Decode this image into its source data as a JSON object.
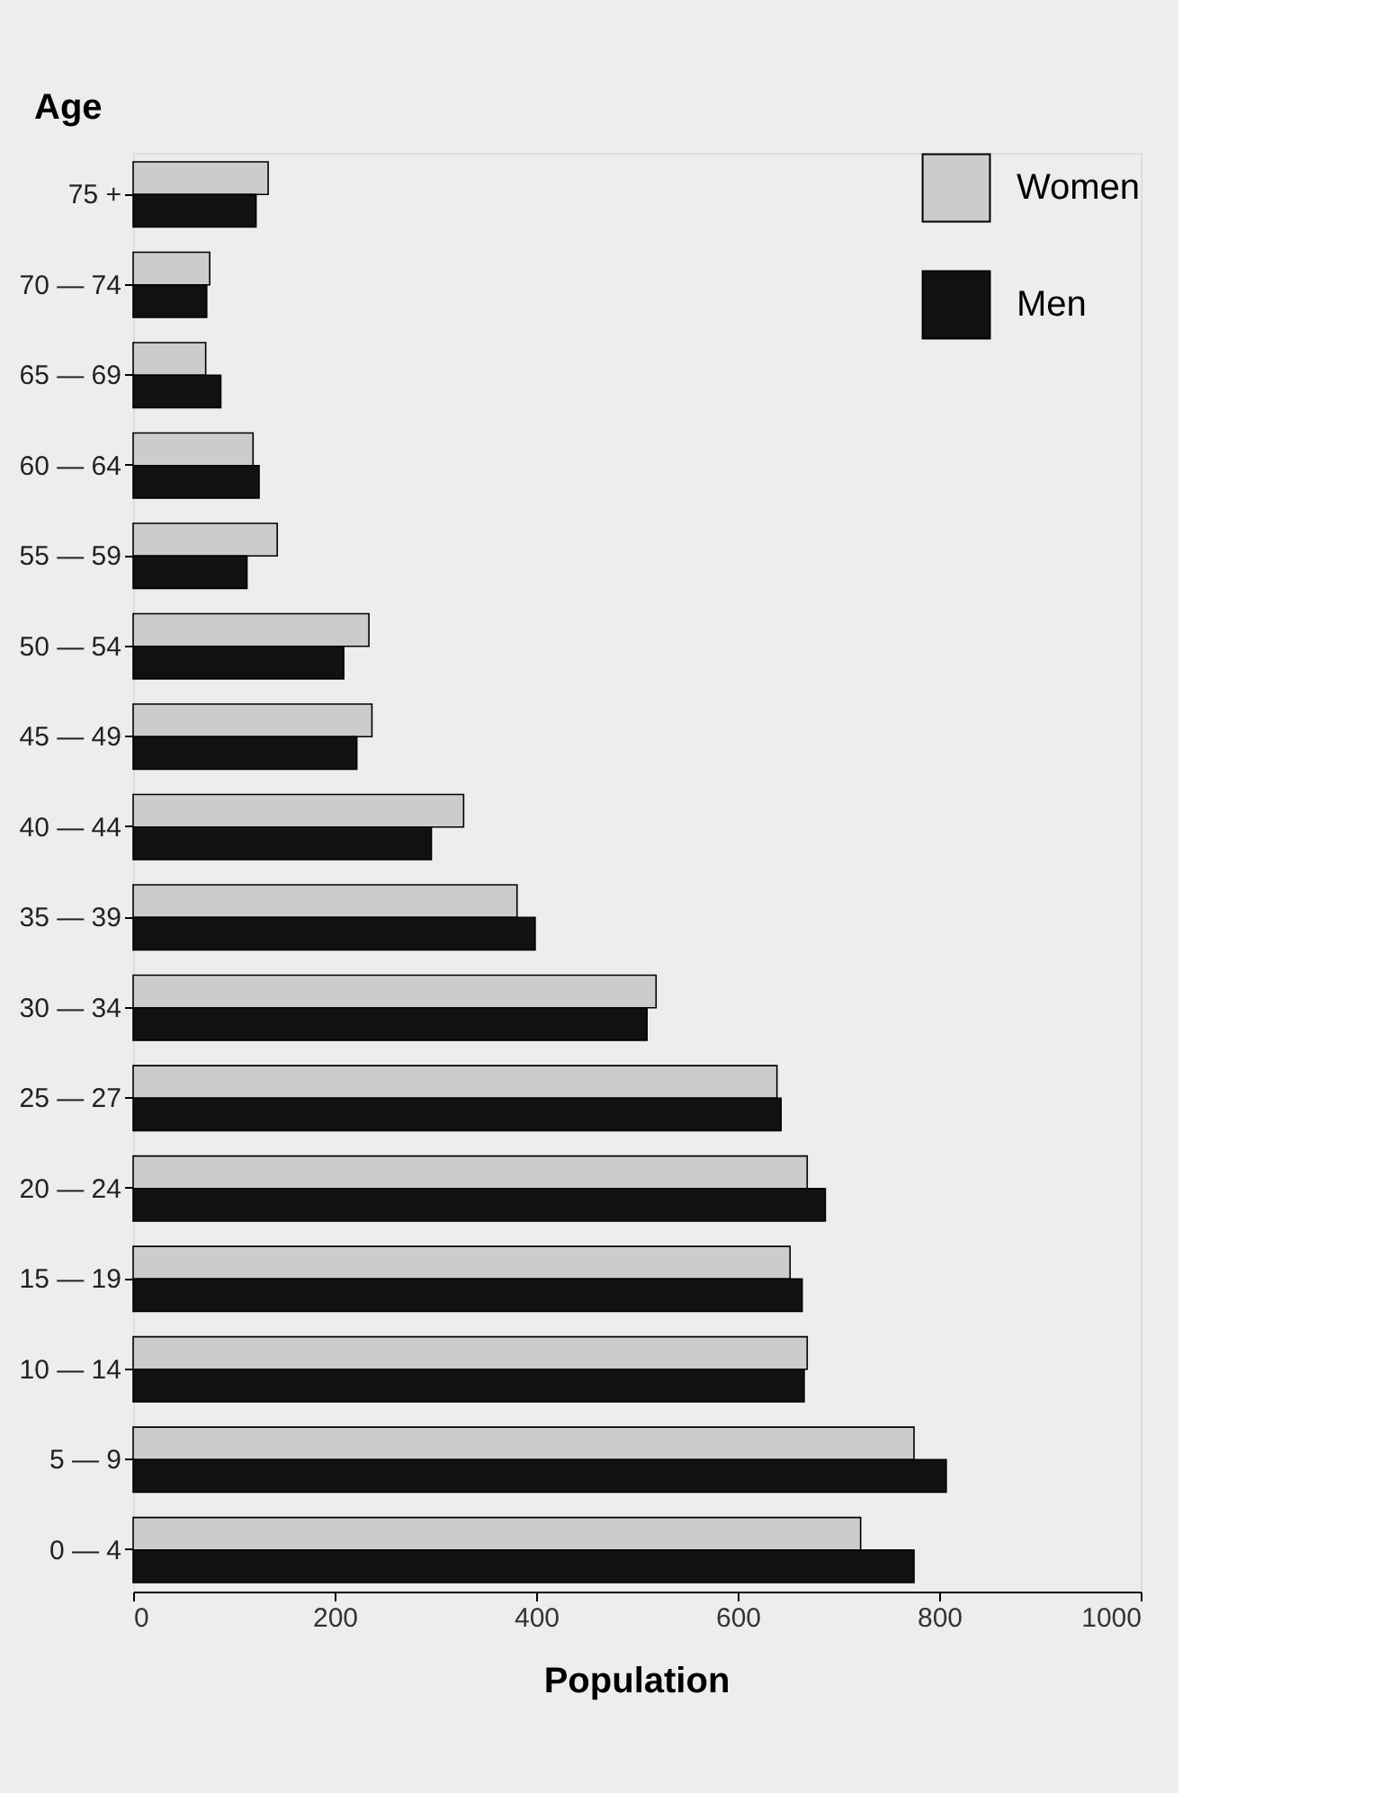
{
  "chart_data": {
    "type": "bar",
    "orientation": "horizontal",
    "xlabel": "Population",
    "ylabel": "Age",
    "categories": [
      "75 +",
      "70 — 74",
      "65 — 69",
      "60 — 64",
      "55 — 59",
      "50 — 54",
      "45 — 49",
      "40 — 44",
      "35 — 39",
      "30 — 34",
      "25 — 27",
      "20 — 24",
      "15 — 19",
      "10 — 14",
      "5 — 9",
      "0 — 4"
    ],
    "series": [
      {
        "name": "Women",
        "color": "#cccccc",
        "values": [
          134,
          76,
          72,
          119,
          143,
          234,
          237,
          328,
          381,
          519,
          639,
          669,
          652,
          669,
          775,
          722
        ]
      },
      {
        "name": "Men",
        "color": "#111111",
        "values": [
          122,
          73,
          87,
          125,
          113,
          209,
          222,
          296,
          399,
          510,
          643,
          687,
          664,
          666,
          807,
          775
        ]
      }
    ],
    "xlim": [
      0,
      1000
    ],
    "xticks": [
      0,
      200,
      400,
      600,
      800,
      1000
    ],
    "grid": false,
    "legend": "top right"
  }
}
